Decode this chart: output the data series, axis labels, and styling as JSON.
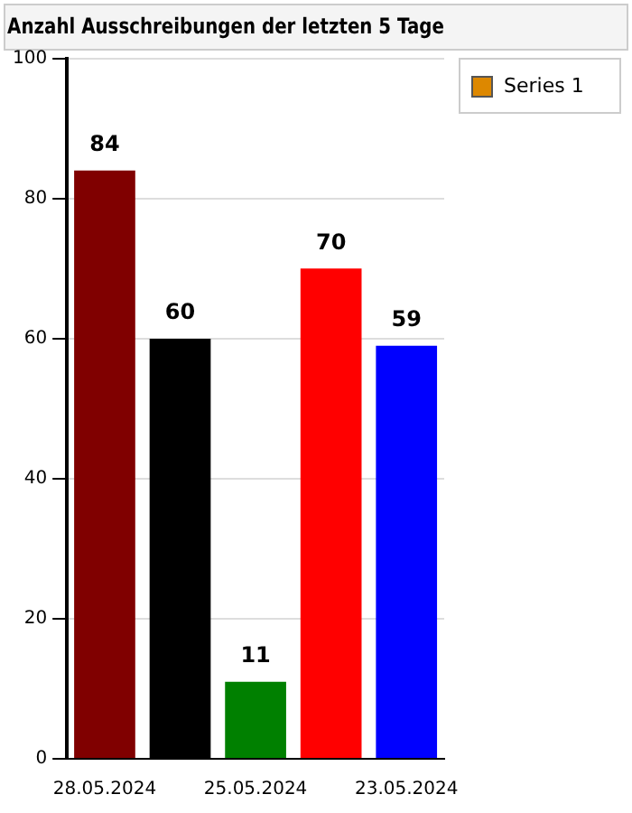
{
  "chart_data": {
    "type": "bar",
    "title": "Anzahl Ausschreibungen der letzten 5 Tage",
    "categories": [
      "28.05.2024",
      null,
      "25.05.2024",
      null,
      "23.05.2024"
    ],
    "series": [
      {
        "name": "Series 1",
        "color": "#dd8800",
        "colors": [
          "#800000",
          "#000000",
          "#008000",
          "#ff0000",
          "#0000ff"
        ],
        "values": [
          84,
          60,
          11,
          70,
          59
        ]
      }
    ],
    "ylim": [
      0,
      100
    ],
    "yticks": [
      0,
      20,
      40,
      60,
      80,
      100
    ],
    "grid": "y",
    "legend": "top right",
    "data_labels": true
  }
}
